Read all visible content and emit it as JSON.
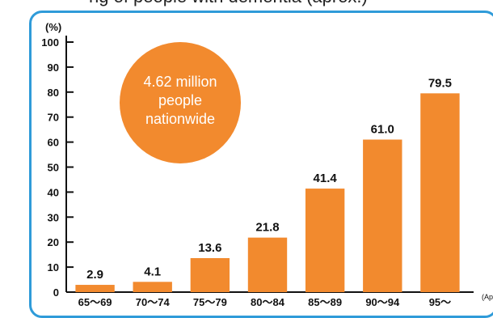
{
  "top_title": "ng of people with dementia (aprox.)",
  "bubble": {
    "lines": [
      "4.62 million",
      "people",
      "nationwide"
    ],
    "color": "#f28a2e"
  },
  "colors": {
    "bar": "#f28a2e",
    "frame": "#2f9bd9",
    "axis": "#111111"
  },
  "chart_data": {
    "type": "bar",
    "unit_label": "(%)",
    "x_suffix": "(Ap",
    "categories": [
      "65～69",
      "70～74",
      "75～79",
      "80～84",
      "85～89",
      "90～94",
      "95～"
    ],
    "values": [
      2.9,
      4.1,
      13.6,
      21.8,
      41.4,
      61.0,
      79.5
    ],
    "value_labels": [
      "2.9",
      "4.1",
      "13.6",
      "21.8",
      "41.4",
      "61.0",
      "79.5"
    ],
    "yticks": [
      0,
      10,
      20,
      30,
      40,
      50,
      60,
      70,
      80,
      90,
      100
    ],
    "ylim": [
      0,
      100
    ],
    "grid": false
  }
}
